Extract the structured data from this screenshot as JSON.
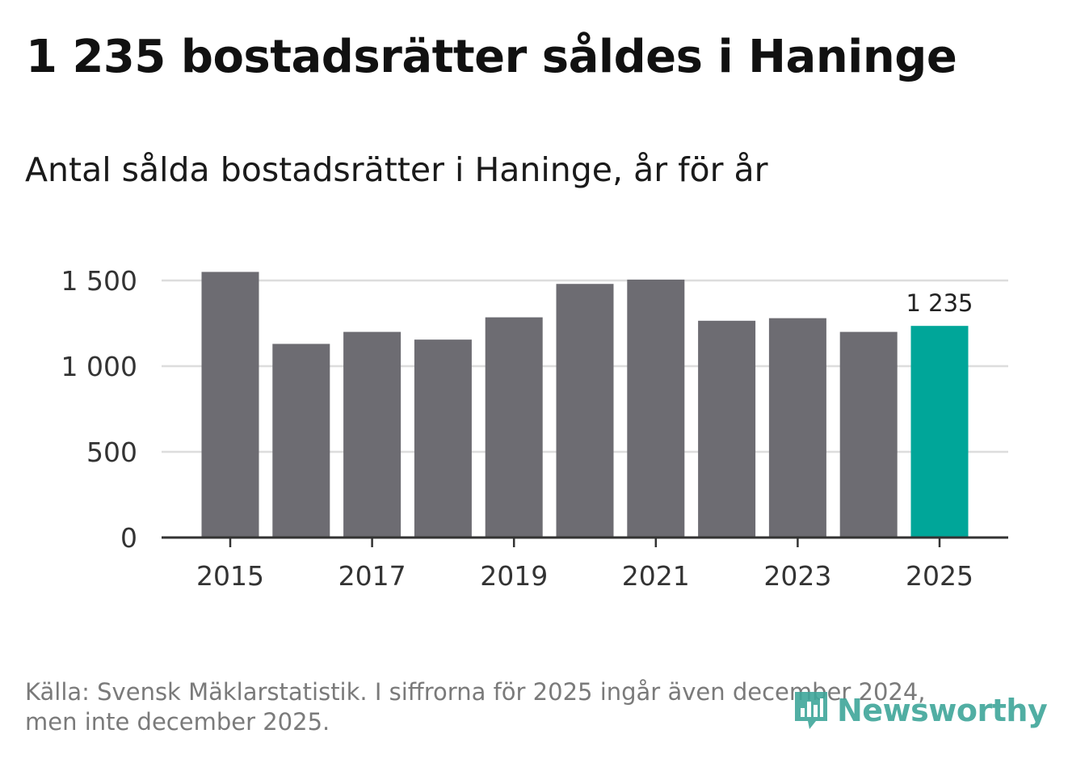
{
  "title": "1 235 bostadsrätter såldes i Haninge",
  "subtitle": "Antal sålda bostadsrätter i Haninge, år för år",
  "footer": {
    "line1": "Källa: Svensk Mäklarstatistik. I siffrorna för 2025 ingår även december 2024,",
    "line2": "men inte december 2025."
  },
  "logo": {
    "text": "Newsworthy",
    "icon": "bar-chart-icon"
  },
  "colors": {
    "bar": "#6d6c72",
    "highlight": "#00a699",
    "grid": "#dddddd",
    "axis": "#333333",
    "logo": "#3fa69a"
  },
  "chart_data": {
    "type": "bar",
    "title": "Antal sålda bostadsrätter i Haninge, år för år",
    "xlabel": "",
    "ylabel": "",
    "categories": [
      "2015",
      "2016",
      "2017",
      "2018",
      "2019",
      "2020",
      "2021",
      "2022",
      "2023",
      "2024",
      "2025"
    ],
    "values": [
      1550,
      1130,
      1200,
      1155,
      1285,
      1480,
      1505,
      1265,
      1280,
      1200,
      1235
    ],
    "highlight_index": 10,
    "ylim": [
      0,
      1500
    ],
    "yticks": [
      0,
      500,
      1000,
      1500
    ],
    "ytick_labels": [
      "0",
      "500",
      "1 000",
      "1 500"
    ],
    "xtick_labels": [
      "2015",
      "2017",
      "2019",
      "2021",
      "2023",
      "2025"
    ],
    "annotations": [
      {
        "category": "2025",
        "text": "1 235"
      }
    ],
    "grid": true,
    "legend": "none"
  }
}
